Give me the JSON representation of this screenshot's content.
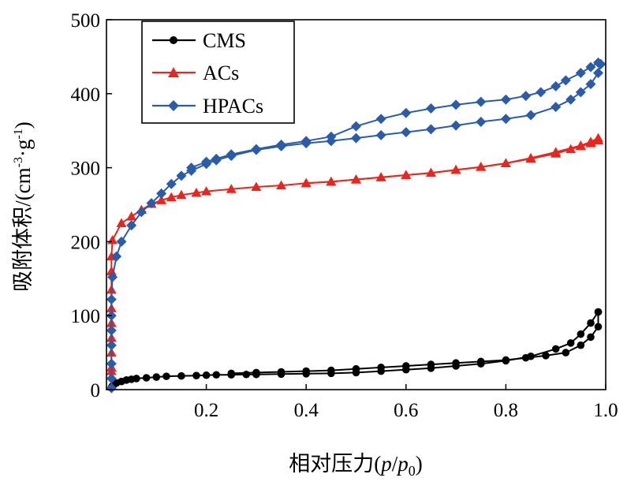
{
  "chart_data": {
    "type": "line",
    "xlabel": {
      "main": "相对压力(",
      "i1": "p",
      "slash": "/",
      "i2": "p",
      "sub": "0",
      "end": ")"
    },
    "ylabel": {
      "main": "吸附体积/(cm",
      "sup1": "-3",
      "dot": "·g",
      "sup2": "-1",
      "end": ")"
    },
    "xlim": [
      0,
      1.0
    ],
    "ylim": [
      0,
      500
    ],
    "xticks": [
      0.2,
      0.4,
      0.6,
      0.8,
      1.0
    ],
    "xtick_labels": [
      "0.2",
      "0.4",
      "0.6",
      "0.8",
      "1.0"
    ],
    "yticks": [
      0,
      100,
      200,
      300,
      400,
      500
    ],
    "ytick_labels": [
      "0",
      "100",
      "200",
      "300",
      "400",
      "500"
    ],
    "legend_position": "top-left",
    "series": [
      {
        "name": "CMS",
        "color": "#000000",
        "marker": "circle",
        "adsorption": [
          [
            0.01,
            3
          ],
          [
            0.012,
            5
          ],
          [
            0.015,
            7
          ],
          [
            0.02,
            9
          ],
          [
            0.03,
            11
          ],
          [
            0.04,
            13
          ],
          [
            0.05,
            14
          ],
          [
            0.06,
            15
          ],
          [
            0.08,
            16
          ],
          [
            0.1,
            17
          ],
          [
            0.12,
            18
          ],
          [
            0.15,
            18.5
          ],
          [
            0.18,
            19
          ],
          [
            0.2,
            19.5
          ],
          [
            0.22,
            20
          ],
          [
            0.25,
            20
          ],
          [
            0.28,
            20.5
          ],
          [
            0.3,
            20.5
          ],
          [
            0.35,
            21
          ],
          [
            0.4,
            21.5
          ],
          [
            0.45,
            22
          ],
          [
            0.5,
            23
          ],
          [
            0.55,
            25
          ],
          [
            0.6,
            27
          ],
          [
            0.65,
            29
          ],
          [
            0.7,
            32
          ],
          [
            0.75,
            35
          ],
          [
            0.8,
            39
          ],
          [
            0.85,
            45
          ],
          [
            0.9,
            55
          ],
          [
            0.93,
            63
          ],
          [
            0.95,
            75
          ],
          [
            0.97,
            90
          ],
          [
            0.985,
            105
          ]
        ],
        "desorption": [
          [
            0.985,
            105
          ],
          [
            0.985,
            85
          ],
          [
            0.97,
            71
          ],
          [
            0.95,
            60
          ],
          [
            0.92,
            50
          ],
          [
            0.88,
            46
          ],
          [
            0.84,
            43
          ],
          [
            0.8,
            40
          ],
          [
            0.75,
            38
          ],
          [
            0.7,
            36
          ],
          [
            0.65,
            34
          ],
          [
            0.6,
            32
          ],
          [
            0.55,
            30
          ],
          [
            0.5,
            28
          ],
          [
            0.45,
            26
          ],
          [
            0.4,
            25
          ],
          [
            0.35,
            24
          ],
          [
            0.3,
            23
          ],
          [
            0.25,
            22
          ]
        ]
      },
      {
        "name": "ACs",
        "color": "#e8251f",
        "marker": "triangle",
        "adsorption": [
          [
            0.01,
            25
          ],
          [
            0.01,
            30
          ],
          [
            0.01,
            50
          ],
          [
            0.01,
            70
          ],
          [
            0.01,
            90
          ],
          [
            0.01,
            110
          ],
          [
            0.01,
            135
          ],
          [
            0.01,
            160
          ],
          [
            0.01,
            180
          ],
          [
            0.012,
            202
          ],
          [
            0.03,
            225
          ],
          [
            0.05,
            234
          ],
          [
            0.07,
            243
          ],
          [
            0.09,
            251
          ],
          [
            0.11,
            256
          ],
          [
            0.13,
            260
          ],
          [
            0.15,
            263
          ],
          [
            0.18,
            266
          ],
          [
            0.2,
            268
          ],
          [
            0.25,
            271
          ],
          [
            0.3,
            274
          ],
          [
            0.35,
            276
          ],
          [
            0.4,
            279
          ],
          [
            0.45,
            281
          ],
          [
            0.5,
            284
          ],
          [
            0.55,
            287
          ],
          [
            0.6,
            290
          ],
          [
            0.65,
            293
          ],
          [
            0.7,
            297
          ],
          [
            0.75,
            301
          ],
          [
            0.8,
            306
          ],
          [
            0.85,
            312
          ],
          [
            0.9,
            319
          ],
          [
            0.93,
            325
          ],
          [
            0.95,
            329
          ],
          [
            0.97,
            333
          ],
          [
            0.985,
            337
          ]
        ],
        "desorption": [
          [
            0.985,
            337
          ],
          [
            0.985,
            340
          ],
          [
            0.97,
            335
          ],
          [
            0.95,
            330
          ],
          [
            0.9,
            321
          ],
          [
            0.85,
            313
          ],
          [
            0.8,
            306
          ],
          [
            0.75,
            301
          ],
          [
            0.7,
            297
          ],
          [
            0.65,
            293
          ],
          [
            0.6,
            290
          ],
          [
            0.55,
            287
          ],
          [
            0.5,
            284
          ],
          [
            0.45,
            281
          ],
          [
            0.4,
            279
          ]
        ]
      },
      {
        "name": "HPACs",
        "color": "#2a5caa",
        "marker": "diamond",
        "adsorption": [
          [
            0.01,
            2
          ],
          [
            0.01,
            15
          ],
          [
            0.01,
            35
          ],
          [
            0.01,
            60
          ],
          [
            0.01,
            80
          ],
          [
            0.01,
            100
          ],
          [
            0.01,
            122
          ],
          [
            0.012,
            152
          ],
          [
            0.02,
            180
          ],
          [
            0.03,
            200
          ],
          [
            0.05,
            222
          ],
          [
            0.07,
            240
          ],
          [
            0.09,
            252
          ],
          [
            0.11,
            265
          ],
          [
            0.13,
            278
          ],
          [
            0.15,
            289
          ],
          [
            0.17,
            296
          ],
          [
            0.2,
            305
          ],
          [
            0.22,
            310
          ],
          [
            0.25,
            316
          ],
          [
            0.3,
            324
          ],
          [
            0.35,
            329
          ],
          [
            0.4,
            333
          ],
          [
            0.45,
            336
          ],
          [
            0.5,
            340
          ],
          [
            0.55,
            344
          ],
          [
            0.6,
            348
          ],
          [
            0.65,
            352
          ],
          [
            0.7,
            357
          ],
          [
            0.75,
            362
          ],
          [
            0.8,
            366
          ],
          [
            0.85,
            371
          ],
          [
            0.9,
            382
          ],
          [
            0.93,
            392
          ],
          [
            0.95,
            402
          ],
          [
            0.97,
            413
          ],
          [
            0.985,
            428
          ],
          [
            0.99,
            440
          ]
        ],
        "desorption": [
          [
            0.99,
            440
          ],
          [
            0.985,
            442
          ],
          [
            0.97,
            436
          ],
          [
            0.95,
            428
          ],
          [
            0.92,
            418
          ],
          [
            0.9,
            410
          ],
          [
            0.87,
            402
          ],
          [
            0.84,
            397
          ],
          [
            0.8,
            392
          ],
          [
            0.75,
            389
          ],
          [
            0.7,
            385
          ],
          [
            0.65,
            380
          ],
          [
            0.6,
            374
          ],
          [
            0.55,
            366
          ],
          [
            0.5,
            356
          ],
          [
            0.45,
            342
          ],
          [
            0.4,
            336
          ],
          [
            0.35,
            331
          ],
          [
            0.3,
            325
          ],
          [
            0.25,
            318
          ],
          [
            0.22,
            312
          ],
          [
            0.2,
            308
          ],
          [
            0.17,
            300
          ]
        ]
      }
    ]
  }
}
